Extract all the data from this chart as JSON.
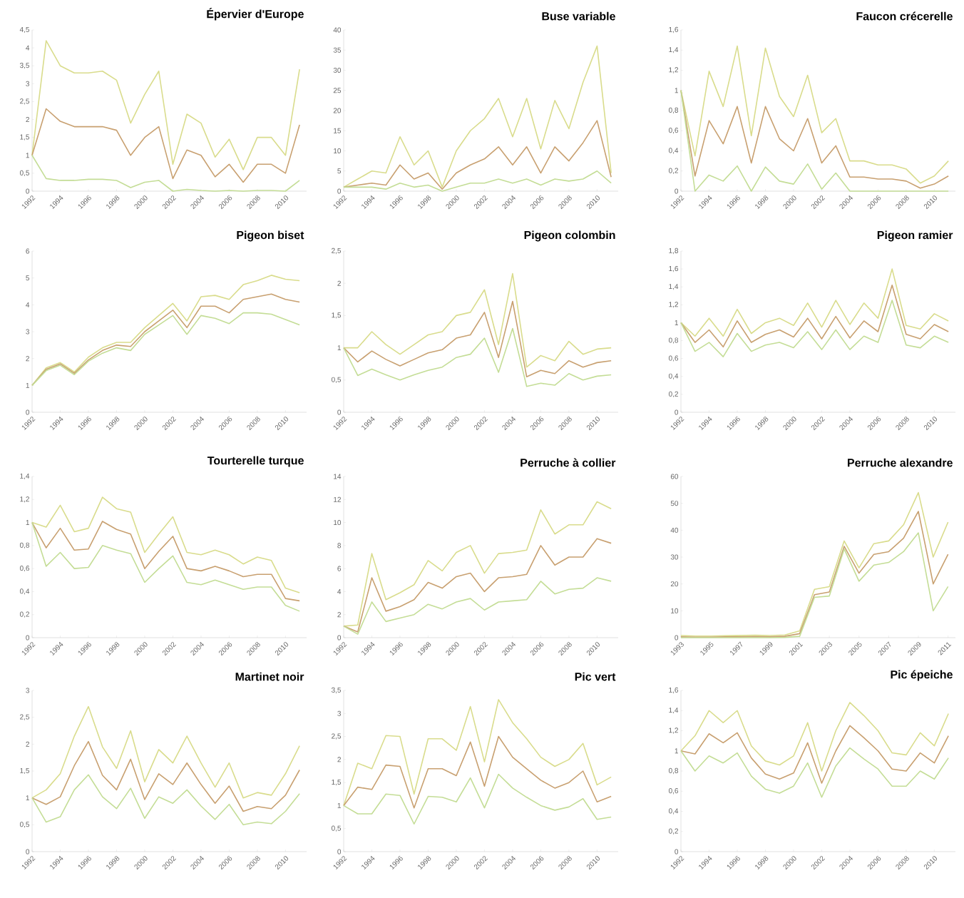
{
  "chart_data": [
    {
      "type": "line",
      "title": "Épervier d'Europe",
      "x": [
        1992,
        1993,
        1994,
        1995,
        1996,
        1997,
        1998,
        1999,
        2000,
        2001,
        2002,
        2003,
        2004,
        2005,
        2006,
        2007,
        2008,
        2009,
        2010,
        2011
      ],
      "xlim": [
        1992,
        2011.5
      ],
      "xticks": [
        1992,
        1994,
        1996,
        1998,
        2000,
        2002,
        2004,
        2006,
        2008,
        2010
      ],
      "ylim": [
        0,
        4.5
      ],
      "yticks": [
        0,
        {
          "value": 0.5,
          "label": "0,5"
        },
        1,
        {
          "value": 1.5,
          "label": "1,5"
        },
        2,
        {
          "value": 2.5,
          "label": "2,5"
        },
        3,
        {
          "value": 3.5,
          "label": "3,5"
        },
        4,
        {
          "value": 4.5,
          "label": "4,5"
        }
      ],
      "series": [
        {
          "color": "#d9dc8c",
          "values": [
            1,
            4.2,
            3.5,
            3.3,
            3.3,
            3.35,
            3.1,
            1.9,
            2.7,
            3.35,
            0.75,
            2.15,
            1.9,
            0.95,
            1.45,
            0.6,
            1.5,
            1.5,
            1.0,
            3.4
          ]
        },
        {
          "color": "#c8a070",
          "values": [
            1,
            2.3,
            1.95,
            1.8,
            1.8,
            1.8,
            1.7,
            1.0,
            1.5,
            1.8,
            0.35,
            1.15,
            1.0,
            0.4,
            0.75,
            0.25,
            0.75,
            0.75,
            0.5,
            1.85
          ]
        },
        {
          "color": "#c4dd96",
          "values": [
            1,
            0.35,
            0.3,
            0.3,
            0.33,
            0.33,
            0.3,
            0.1,
            0.25,
            0.3,
            0,
            0.05,
            0.02,
            0,
            0.02,
            0,
            0.02,
            0.02,
            0,
            0.3
          ]
        }
      ]
    },
    {
      "type": "line",
      "title": "Buse variable",
      "x": [
        1992,
        1993,
        1994,
        1995,
        1996,
        1997,
        1998,
        1999,
        2000,
        2001,
        2002,
        2003,
        2004,
        2005,
        2006,
        2007,
        2008,
        2009,
        2010,
        2011
      ],
      "xlim": [
        1992,
        2011.5
      ],
      "xticks": [
        1992,
        1994,
        1996,
        1998,
        2000,
        2002,
        2004,
        2006,
        2008,
        2010
      ],
      "ylim": [
        0,
        40
      ],
      "yticks": [
        0,
        5,
        10,
        15,
        20,
        25,
        30,
        35,
        40
      ],
      "series": [
        {
          "color": "#d9dc8c",
          "values": [
            1,
            3,
            5,
            4.5,
            13.5,
            6.5,
            10,
            1,
            10,
            15,
            18,
            23,
            13.5,
            23,
            10.5,
            22.5,
            15.5,
            27,
            36,
            4.5
          ]
        },
        {
          "color": "#c8a070",
          "values": [
            1,
            1.5,
            2,
            1.5,
            6.5,
            3,
            4.5,
            0.5,
            4.5,
            6.5,
            8,
            11,
            6.5,
            11,
            4.5,
            11,
            7.5,
            12,
            17.5,
            3.5
          ]
        },
        {
          "color": "#c4dd96",
          "values": [
            1,
            1,
            1,
            0.5,
            2,
            1,
            1.5,
            0,
            1,
            2,
            2,
            3,
            2,
            3,
            1.5,
            3,
            2.5,
            3,
            5,
            2
          ]
        }
      ]
    },
    {
      "type": "line",
      "title": "Faucon crécerelle",
      "x": [
        1992,
        1993,
        1994,
        1995,
        1996,
        1997,
        1998,
        1999,
        2000,
        2001,
        2002,
        2003,
        2004,
        2005,
        2006,
        2007,
        2008,
        2009,
        2010,
        2011
      ],
      "xlim": [
        1992,
        2011.5
      ],
      "xticks": [
        1992,
        1994,
        1996,
        1998,
        2000,
        2002,
        2004,
        2006,
        2008,
        2010
      ],
      "ylim": [
        0,
        1.6
      ],
      "yticks": [
        0,
        {
          "value": 0.2,
          "label": "0,2"
        },
        {
          "value": 0.4,
          "label": "0,4"
        },
        {
          "value": 0.6,
          "label": "0,6"
        },
        {
          "value": 0.8,
          "label": "0,8"
        },
        1,
        {
          "value": 1.2,
          "label": "1,2"
        },
        {
          "value": 1.4,
          "label": "1,4"
        },
        {
          "value": 1.6,
          "label": "1,6"
        }
      ],
      "series": [
        {
          "color": "#d9dc8c",
          "values": [
            1,
            0.35,
            1.19,
            0.84,
            1.44,
            0.55,
            1.42,
            0.94,
            0.74,
            1.15,
            0.58,
            0.72,
            0.3,
            0.3,
            0.26,
            0.26,
            0.22,
            0.08,
            0.15,
            0.3
          ]
        },
        {
          "color": "#c8a070",
          "values": [
            1,
            0.15,
            0.7,
            0.47,
            0.84,
            0.28,
            0.84,
            0.52,
            0.4,
            0.72,
            0.28,
            0.45,
            0.14,
            0.14,
            0.12,
            0.12,
            0.1,
            0.03,
            0.07,
            0.15
          ]
        },
        {
          "color": "#c4dd96",
          "values": [
            1,
            0,
            0.16,
            0.1,
            0.25,
            0,
            0.24,
            0.1,
            0.07,
            0.27,
            0.02,
            0.18,
            0,
            0,
            0,
            0,
            0,
            0,
            0,
            0
          ]
        }
      ]
    },
    {
      "type": "line",
      "title": "Pigeon biset",
      "x": [
        1992,
        1993,
        1994,
        1995,
        1996,
        1997,
        1998,
        1999,
        2000,
        2001,
        2002,
        2003,
        2004,
        2005,
        2006,
        2007,
        2008,
        2009,
        2010,
        2011
      ],
      "xlim": [
        1992,
        2011.5
      ],
      "xticks": [
        1992,
        1994,
        1996,
        1998,
        2000,
        2002,
        2004,
        2006,
        2008,
        2010
      ],
      "ylim": [
        0,
        6
      ],
      "yticks": [
        0,
        1,
        2,
        3,
        4,
        5,
        6
      ],
      "series": [
        {
          "color": "#d9dc8c",
          "values": [
            1,
            1.65,
            1.85,
            1.5,
            2.05,
            2.4,
            2.6,
            2.6,
            3.15,
            3.6,
            4.05,
            3.4,
            4.3,
            4.35,
            4.2,
            4.75,
            4.9,
            5.1,
            4.95,
            4.9
          ]
        },
        {
          "color": "#c8a070",
          "values": [
            1,
            1.6,
            1.8,
            1.45,
            1.95,
            2.3,
            2.5,
            2.45,
            3.0,
            3.4,
            3.8,
            3.15,
            3.95,
            3.95,
            3.7,
            4.2,
            4.3,
            4.4,
            4.2,
            4.1
          ]
        },
        {
          "color": "#c4dd96",
          "values": [
            1,
            1.55,
            1.75,
            1.4,
            1.9,
            2.2,
            2.4,
            2.3,
            2.9,
            3.25,
            3.6,
            2.9,
            3.6,
            3.5,
            3.3,
            3.7,
            3.7,
            3.65,
            3.45,
            3.25
          ]
        }
      ]
    },
    {
      "type": "line",
      "title": "Pigeon colombin",
      "x": [
        1992,
        1993,
        1994,
        1995,
        1996,
        1997,
        1998,
        1999,
        2000,
        2001,
        2002,
        2003,
        2004,
        2005,
        2006,
        2007,
        2008,
        2009,
        2010,
        2011
      ],
      "xlim": [
        1992,
        2011.5
      ],
      "xticks": [
        1992,
        1994,
        1996,
        1998,
        2000,
        2002,
        2004,
        2006,
        2008,
        2010
      ],
      "ylim": [
        0,
        2.5
      ],
      "yticks": [
        0,
        {
          "value": 0.5,
          "label": "0,5"
        },
        1,
        {
          "value": 1.5,
          "label": "1,5"
        },
        2,
        {
          "value": 2.5,
          "label": "2,5"
        }
      ],
      "series": [
        {
          "color": "#d9dc8c",
          "values": [
            1,
            1.0,
            1.25,
            1.05,
            0.9,
            1.05,
            1.2,
            1.25,
            1.5,
            1.55,
            1.9,
            1.05,
            2.15,
            0.7,
            0.88,
            0.8,
            1.1,
            0.9,
            0.98,
            1.0
          ]
        },
        {
          "color": "#c8a070",
          "values": [
            1,
            0.78,
            0.95,
            0.82,
            0.72,
            0.82,
            0.92,
            0.97,
            1.15,
            1.2,
            1.55,
            0.85,
            1.72,
            0.55,
            0.65,
            0.6,
            0.8,
            0.7,
            0.77,
            0.8
          ]
        },
        {
          "color": "#c4dd96",
          "values": [
            1,
            0.57,
            0.67,
            0.58,
            0.5,
            0.58,
            0.65,
            0.7,
            0.85,
            0.9,
            1.15,
            0.62,
            1.3,
            0.4,
            0.45,
            0.42,
            0.6,
            0.5,
            0.56,
            0.58
          ]
        }
      ]
    },
    {
      "type": "line",
      "title": "Pigeon ramier",
      "x": [
        1992,
        1993,
        1994,
        1995,
        1996,
        1997,
        1998,
        1999,
        2000,
        2001,
        2002,
        2003,
        2004,
        2005,
        2006,
        2007,
        2008,
        2009,
        2010,
        2011
      ],
      "xlim": [
        1992,
        2011.5
      ],
      "xticks": [
        1992,
        1994,
        1996,
        1998,
        2000,
        2002,
        2004,
        2006,
        2008,
        2010
      ],
      "ylim": [
        0,
        1.8
      ],
      "yticks": [
        0,
        {
          "value": 0.2,
          "label": "0,2"
        },
        {
          "value": 0.4,
          "label": "0,4"
        },
        {
          "value": 0.6,
          "label": "0,6"
        },
        {
          "value": 0.8,
          "label": "0,8"
        },
        1,
        {
          "value": 1.2,
          "label": "1,2"
        },
        {
          "value": 1.4,
          "label": "1,4"
        },
        {
          "value": 1.6,
          "label": "1,6"
        },
        {
          "value": 1.8,
          "label": "1,8"
        }
      ],
      "series": [
        {
          "color": "#d9dc8c",
          "values": [
            1,
            0.85,
            1.05,
            0.85,
            1.15,
            0.88,
            1.0,
            1.05,
            0.97,
            1.22,
            0.95,
            1.25,
            0.98,
            1.22,
            1.05,
            1.6,
            0.97,
            0.93,
            1.1,
            1.02
          ]
        },
        {
          "color": "#c8a070",
          "values": [
            1,
            0.78,
            0.92,
            0.73,
            1.02,
            0.78,
            0.87,
            0.92,
            0.84,
            1.05,
            0.82,
            1.07,
            0.83,
            1.02,
            0.9,
            1.42,
            0.87,
            0.82,
            0.98,
            0.9
          ]
        },
        {
          "color": "#c4dd96",
          "values": [
            1,
            0.68,
            0.78,
            0.62,
            0.88,
            0.68,
            0.75,
            0.78,
            0.72,
            0.9,
            0.7,
            0.92,
            0.7,
            0.85,
            0.78,
            1.25,
            0.75,
            0.72,
            0.85,
            0.78
          ]
        }
      ]
    },
    {
      "type": "line",
      "title": "Tourterelle turque",
      "x": [
        1992,
        1993,
        1994,
        1995,
        1996,
        1997,
        1998,
        1999,
        2000,
        2001,
        2002,
        2003,
        2004,
        2005,
        2006,
        2007,
        2008,
        2009,
        2010,
        2011
      ],
      "xlim": [
        1992,
        2011.5
      ],
      "xticks": [
        1992,
        1994,
        1996,
        1998,
        2000,
        2002,
        2004,
        2006,
        2008,
        2010
      ],
      "ylim": [
        0,
        1.4
      ],
      "yticks": [
        0,
        {
          "value": 0.2,
          "label": "0,2"
        },
        {
          "value": 0.4,
          "label": "0,4"
        },
        {
          "value": 0.6,
          "label": "0,6"
        },
        {
          "value": 0.8,
          "label": "0,8"
        },
        1,
        {
          "value": 1.2,
          "label": "1,2"
        },
        {
          "value": 1.4,
          "label": "1,4"
        }
      ],
      "series": [
        {
          "color": "#d9dc8c",
          "values": [
            1,
            0.96,
            1.15,
            0.92,
            0.95,
            1.22,
            1.12,
            1.09,
            0.74,
            0.9,
            1.05,
            0.74,
            0.72,
            0.76,
            0.72,
            0.64,
            0.7,
            0.67,
            0.43,
            0.39
          ]
        },
        {
          "color": "#c8a070",
          "values": [
            1,
            0.78,
            0.95,
            0.76,
            0.77,
            1.01,
            0.94,
            0.9,
            0.6,
            0.75,
            0.88,
            0.6,
            0.58,
            0.62,
            0.58,
            0.53,
            0.55,
            0.55,
            0.34,
            0.32
          ]
        },
        {
          "color": "#c4dd96",
          "values": [
            1,
            0.62,
            0.74,
            0.6,
            0.61,
            0.8,
            0.76,
            0.73,
            0.48,
            0.6,
            0.71,
            0.48,
            0.46,
            0.5,
            0.46,
            0.42,
            0.44,
            0.44,
            0.28,
            0.23
          ]
        }
      ]
    },
    {
      "type": "line",
      "title": "Perruche à collier",
      "x": [
        1992,
        1993,
        1994,
        1995,
        1996,
        1997,
        1998,
        1999,
        2000,
        2001,
        2002,
        2003,
        2004,
        2005,
        2006,
        2007,
        2008,
        2009,
        2010,
        2011
      ],
      "xlim": [
        1992,
        2011.5
      ],
      "xticks": [
        1992,
        1994,
        1996,
        1998,
        2000,
        2002,
        2004,
        2006,
        2008,
        2010
      ],
      "ylim": [
        0,
        14
      ],
      "yticks": [
        0,
        2,
        4,
        6,
        8,
        10,
        12,
        14
      ],
      "series": [
        {
          "color": "#d9dc8c",
          "values": [
            1,
            1.1,
            7.3,
            3.3,
            3.9,
            4.6,
            6.7,
            5.8,
            7.4,
            8.0,
            5.6,
            7.3,
            7.4,
            7.6,
            11.1,
            9.0,
            9.8,
            9.8,
            11.8,
            11.2
          ]
        },
        {
          "color": "#c8a070",
          "values": [
            1,
            0.5,
            5.2,
            2.3,
            2.7,
            3.3,
            4.8,
            4.3,
            5.3,
            5.6,
            4.0,
            5.2,
            5.3,
            5.5,
            8.0,
            6.3,
            7.0,
            7.0,
            8.6,
            8.2
          ]
        },
        {
          "color": "#c4dd96",
          "values": [
            1,
            0.3,
            3.1,
            1.4,
            1.7,
            2.0,
            2.9,
            2.5,
            3.1,
            3.4,
            2.4,
            3.1,
            3.2,
            3.3,
            4.9,
            3.8,
            4.2,
            4.3,
            5.2,
            4.9
          ]
        }
      ]
    },
    {
      "type": "line",
      "title": "Perruche alexandre",
      "x": [
        1993,
        1994,
        1995,
        1996,
        1997,
        1998,
        1999,
        2000,
        2001,
        2002,
        2003,
        2004,
        2005,
        2006,
        2007,
        2008,
        2009,
        2010,
        2011
      ],
      "xlim": [
        1993,
        2011.5
      ],
      "xticks": [
        1993,
        1995,
        1997,
        1999,
        2001,
        2003,
        2005,
        2007,
        2009,
        2011
      ],
      "ylim": [
        0,
        60
      ],
      "yticks": [
        0,
        10,
        20,
        30,
        40,
        50,
        60
      ],
      "series": [
        {
          "color": "#d9dc8c",
          "values": [
            0.8,
            0.6,
            0.6,
            0.7,
            0.8,
            0.9,
            0.8,
            1,
            2.5,
            18,
            19,
            36,
            26,
            35,
            36,
            42,
            54,
            30,
            43
          ]
        },
        {
          "color": "#c8a070",
          "values": [
            0.3,
            0.2,
            0.2,
            0.3,
            0.3,
            0.4,
            0.3,
            0.5,
            1.5,
            16,
            17,
            34,
            24,
            31,
            32,
            37,
            47,
            20,
            31
          ]
        },
        {
          "color": "#c4dd96",
          "values": [
            0,
            0,
            0,
            0,
            0,
            0,
            0,
            0.1,
            0.5,
            15,
            15.5,
            33,
            21,
            27,
            28,
            32,
            39,
            10,
            19
          ]
        }
      ]
    },
    {
      "type": "line",
      "title": "Martinet noir",
      "x": [
        1992,
        1993,
        1994,
        1995,
        1996,
        1997,
        1998,
        1999,
        2000,
        2001,
        2002,
        2003,
        2004,
        2005,
        2006,
        2007,
        2008,
        2009,
        2010,
        2011
      ],
      "xlim": [
        1992,
        2011.5
      ],
      "xticks": [
        1992,
        1994,
        1996,
        1998,
        2000,
        2002,
        2004,
        2006,
        2008,
        2010
      ],
      "ylim": [
        0,
        3
      ],
      "yticks": [
        0,
        {
          "value": 0.5,
          "label": "0,5"
        },
        1,
        {
          "value": 1.5,
          "label": "1,5"
        },
        2,
        {
          "value": 2.5,
          "label": "2,5"
        },
        3
      ],
      "series": [
        {
          "color": "#d9dc8c",
          "values": [
            1,
            1.15,
            1.45,
            2.15,
            2.7,
            1.95,
            1.55,
            2.25,
            1.3,
            1.9,
            1.65,
            2.15,
            1.65,
            1.2,
            1.65,
            1.0,
            1.1,
            1.05,
            1.45,
            1.97
          ]
        },
        {
          "color": "#c8a070",
          "values": [
            1,
            0.88,
            1.02,
            1.6,
            2.05,
            1.42,
            1.15,
            1.72,
            0.97,
            1.45,
            1.25,
            1.65,
            1.25,
            0.9,
            1.22,
            0.75,
            0.84,
            0.8,
            1.05,
            1.52
          ]
        },
        {
          "color": "#c4dd96",
          "values": [
            1,
            0.55,
            0.65,
            1.15,
            1.43,
            1.02,
            0.8,
            1.18,
            0.62,
            1.02,
            0.9,
            1.15,
            0.85,
            0.6,
            0.88,
            0.5,
            0.55,
            0.52,
            0.75,
            1.08
          ]
        }
      ]
    },
    {
      "type": "line",
      "title": "Pic vert",
      "x": [
        1992,
        1993,
        1994,
        1995,
        1996,
        1997,
        1998,
        1999,
        2000,
        2001,
        2002,
        2003,
        2004,
        2005,
        2006,
        2007,
        2008,
        2009,
        2010,
        2011
      ],
      "xlim": [
        1992,
        2011.5
      ],
      "xticks": [
        1992,
        1994,
        1996,
        1998,
        2000,
        2002,
        2004,
        2006,
        2008,
        2010
      ],
      "ylim": [
        0,
        3.5
      ],
      "yticks": [
        0,
        {
          "value": 0.5,
          "label": "0,5"
        },
        1,
        {
          "value": 1.5,
          "label": "1,5"
        },
        2,
        {
          "value": 2.5,
          "label": "2,5"
        },
        3,
        {
          "value": 3.5,
          "label": "3,5"
        }
      ],
      "series": [
        {
          "color": "#d9dc8c",
          "values": [
            1,
            1.92,
            1.8,
            2.52,
            2.5,
            1.25,
            2.45,
            2.45,
            2.2,
            3.15,
            1.95,
            3.3,
            2.8,
            2.45,
            2.05,
            1.85,
            2.0,
            2.35,
            1.45,
            1.62
          ]
        },
        {
          "color": "#c8a070",
          "values": [
            1,
            1.4,
            1.35,
            1.88,
            1.85,
            0.95,
            1.8,
            1.8,
            1.65,
            2.38,
            1.42,
            2.5,
            2.05,
            1.8,
            1.55,
            1.38,
            1.5,
            1.75,
            1.08,
            1.2
          ]
        },
        {
          "color": "#c4dd96",
          "values": [
            1,
            0.82,
            0.82,
            1.25,
            1.22,
            0.6,
            1.2,
            1.18,
            1.08,
            1.6,
            0.95,
            1.68,
            1.38,
            1.18,
            1.0,
            0.9,
            0.97,
            1.15,
            0.7,
            0.75
          ]
        }
      ]
    },
    {
      "type": "line",
      "title": "Pic épeiche",
      "x": [
        1992,
        1993,
        1994,
        1995,
        1996,
        1997,
        1998,
        1999,
        2000,
        2001,
        2002,
        2003,
        2004,
        2005,
        2006,
        2007,
        2008,
        2009,
        2010,
        2011
      ],
      "xlim": [
        1992,
        2011.5
      ],
      "xticks": [
        1992,
        1994,
        1996,
        1998,
        2000,
        2002,
        2004,
        2006,
        2008,
        2010
      ],
      "ylim": [
        0,
        1.6
      ],
      "yticks": [
        0,
        {
          "value": 0.2,
          "label": "0,2"
        },
        {
          "value": 0.4,
          "label": "0,4"
        },
        {
          "value": 0.6,
          "label": "0,6"
        },
        {
          "value": 0.8,
          "label": "0,8"
        },
        1,
        {
          "value": 1.2,
          "label": "1,2"
        },
        {
          "value": 1.4,
          "label": "1,4"
        },
        {
          "value": 1.6,
          "label": "1,6"
        }
      ],
      "series": [
        {
          "color": "#d9dc8c",
          "values": [
            1,
            1.15,
            1.4,
            1.28,
            1.4,
            1.05,
            0.9,
            0.86,
            0.95,
            1.28,
            0.8,
            1.2,
            1.48,
            1.35,
            1.2,
            0.98,
            0.96,
            1.18,
            1.05,
            1.37
          ]
        },
        {
          "color": "#c8a070",
          "values": [
            1,
            0.97,
            1.17,
            1.08,
            1.18,
            0.93,
            0.77,
            0.72,
            0.78,
            1.08,
            0.68,
            1.0,
            1.25,
            1.13,
            1.0,
            0.82,
            0.8,
            0.98,
            0.88,
            1.15
          ]
        },
        {
          "color": "#c4dd96",
          "values": [
            1,
            0.8,
            0.95,
            0.88,
            0.98,
            0.75,
            0.62,
            0.58,
            0.65,
            0.88,
            0.54,
            0.85,
            1.03,
            0.92,
            0.82,
            0.65,
            0.65,
            0.8,
            0.72,
            0.93
          ]
        }
      ]
    }
  ]
}
